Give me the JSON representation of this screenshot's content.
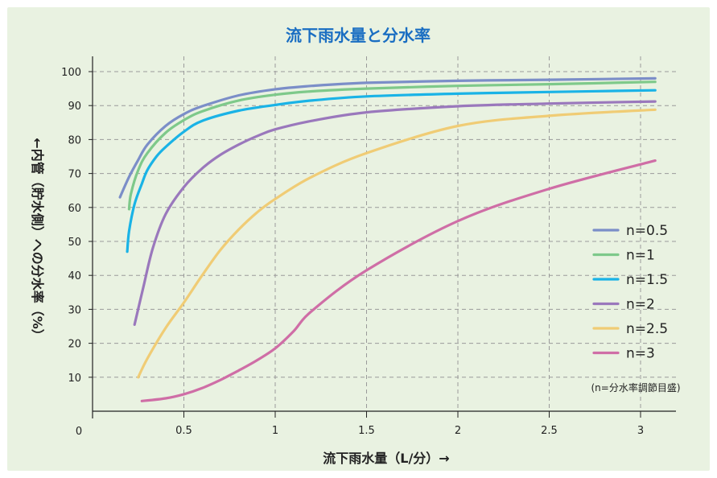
{
  "chart_data": {
    "type": "line",
    "title": "流下雨水量と分水率",
    "xlabel": "流下雨水量（L/分）→",
    "ylabel": "←内管（貯水側）への分水率（%）",
    "origin_label": "0",
    "xlim": [
      0,
      3.2
    ],
    "ylim": [
      0,
      100
    ],
    "x_ticks": [
      "0.5",
      "1",
      "1.5",
      "2",
      "2.5",
      "3"
    ],
    "y_ticks": [
      "10",
      "20",
      "30",
      "40",
      "50",
      "60",
      "70",
      "80",
      "90",
      "100"
    ],
    "grid": true,
    "legend_position": "right",
    "note": "(n=分水率調節目盛)",
    "series": [
      {
        "name": "n=0.5",
        "color": "#7b8ec8",
        "x": [
          0.15,
          0.2,
          0.25,
          0.3,
          0.4,
          0.5,
          0.6,
          0.8,
          1.0,
          1.2,
          1.5,
          2.0,
          2.5,
          3.08
        ],
        "y": [
          63,
          69,
          74,
          78.5,
          84,
          87.5,
          89.8,
          93,
          94.8,
          95.8,
          96.7,
          97.3,
          97.6,
          98
        ]
      },
      {
        "name": "n=1",
        "color": "#7ec98a",
        "x": [
          0.2,
          0.21,
          0.25,
          0.3,
          0.4,
          0.5,
          0.6,
          0.8,
          1.0,
          1.2,
          1.5,
          2.0,
          2.5,
          3.08
        ],
        "y": [
          59.5,
          64,
          71,
          76,
          82,
          85.7,
          88.3,
          91.5,
          93.2,
          94.2,
          95,
          95.8,
          96.3,
          97
        ]
      },
      {
        "name": "n=1.5",
        "color": "#1ab3e6",
        "x": [
          0.19,
          0.2,
          0.23,
          0.27,
          0.3,
          0.35,
          0.4,
          0.5,
          0.6,
          0.8,
          1.0,
          1.2,
          1.5,
          2.0,
          2.5,
          3.08
        ],
        "y": [
          47,
          53,
          61,
          67,
          71,
          75,
          77.8,
          82.3,
          85.5,
          88.5,
          90.2,
          91.5,
          92.7,
          93.5,
          94,
          94.5
        ]
      },
      {
        "name": "n=2",
        "color": "#9a78bc",
        "x": [
          0.23,
          0.28,
          0.33,
          0.4,
          0.5,
          0.6,
          0.7,
          0.8,
          0.9,
          1.0,
          1.2,
          1.5,
          2.0,
          2.5,
          3.08
        ],
        "y": [
          25.5,
          37,
          48,
          58,
          66,
          71.5,
          75.5,
          78.5,
          81,
          83,
          85.5,
          88,
          89.8,
          90.6,
          91.2
        ]
      },
      {
        "name": "n=2.5",
        "color": "#f0cc75",
        "x": [
          0.25,
          0.3,
          0.4,
          0.5,
          0.6,
          0.7,
          0.8,
          0.9,
          1.0,
          1.2,
          1.5,
          2.0,
          2.5,
          3.08
        ],
        "y": [
          10,
          15.5,
          24.5,
          32,
          40,
          47.5,
          53.5,
          58.5,
          62.5,
          69,
          76,
          84,
          87,
          88.8
        ]
      },
      {
        "name": "n=3",
        "color": "#cf6ea6",
        "x": [
          0.27,
          0.4,
          0.5,
          0.6,
          0.7,
          0.8,
          0.9,
          1.0,
          1.1,
          1.2,
          1.5,
          2.0,
          2.5,
          3.08
        ],
        "y": [
          3,
          3.8,
          5,
          6.8,
          9.2,
          12,
          15,
          18.5,
          23.5,
          29.5,
          41.5,
          56,
          65.5,
          73.8
        ]
      }
    ]
  }
}
